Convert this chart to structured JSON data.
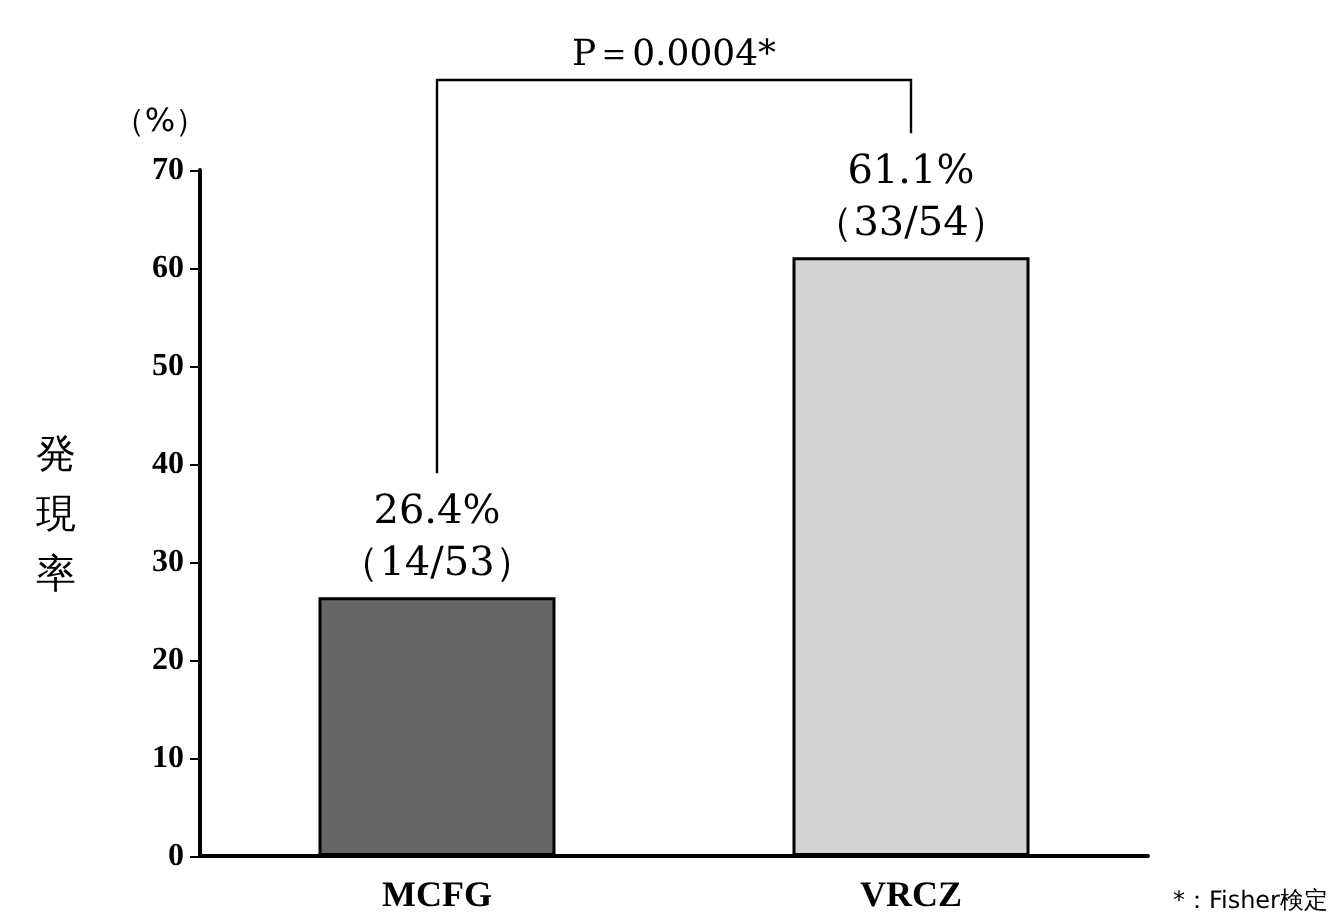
{
  "chart_data": {
    "type": "bar",
    "ylabel": "発現率",
    "categories": [
      "MCFG",
      "VRCZ"
    ],
    "values": [
      26.4,
      61.1
    ],
    "colors": [
      "#666666",
      "#d3d3d3"
    ],
    "value_labels": [
      "26.4%\n（14/53）",
      "61.1%\n（33/54）"
    ],
    "ylim": [
      0,
      70
    ],
    "yticks": [
      0,
      10,
      20,
      30,
      40,
      50,
      60,
      70
    ],
    "grid": false,
    "annotations": [
      "P＝0.0004*",
      "（%）",
      "*：Fisher検定"
    ]
  }
}
